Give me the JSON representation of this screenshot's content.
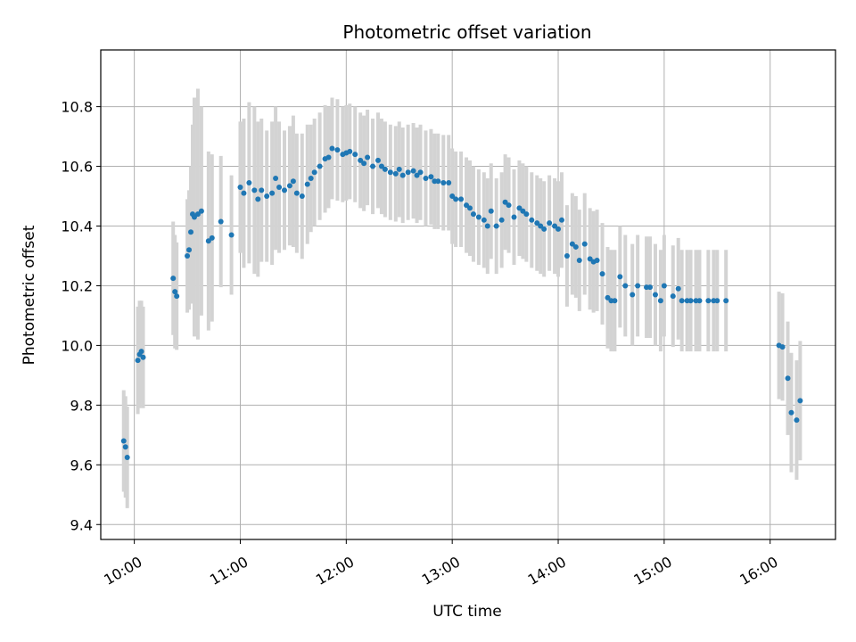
{
  "chart_data": {
    "type": "scatter",
    "title": "Photometric offset variation",
    "xlabel": "UTC time",
    "ylabel": "Photometric offset",
    "x_tick_labels": [
      "10:00",
      "11:00",
      "12:00",
      "13:00",
      "14:00",
      "15:00",
      "16:00"
    ],
    "y_tick_labels": [
      "9.4",
      "9.6",
      "9.8",
      "10.0",
      "10.2",
      "10.4",
      "10.6",
      "10.8"
    ],
    "x_ticks": [
      "10:00",
      "11:00",
      "12:00",
      "13:00",
      "14:00",
      "15:00",
      "16:00"
    ],
    "y_ticks": [
      9.4,
      9.6,
      9.8,
      10.0,
      10.2,
      10.4,
      10.6,
      10.8
    ],
    "xlim": [
      "09:41",
      "16:37"
    ],
    "ylim": [
      9.35,
      10.99
    ],
    "grid": true,
    "colors": {
      "points": "#1f77b4",
      "errorbars": "#d3d3d3",
      "grid": "#b0b0b0"
    },
    "series": [
      {
        "x": [
          "09:54",
          "09:55",
          "09:56",
          "10:02",
          "10:03",
          "10:04",
          "10:05",
          "10:22",
          "10:23",
          "10:24",
          "10:30",
          "10:31",
          "10:32",
          "10:33",
          "10:34",
          "10:36",
          "10:38",
          "10:42",
          "10:44",
          "10:49",
          "10:55",
          "11:00",
          "11:02",
          "11:05",
          "11:08",
          "11:10",
          "11:12",
          "11:15",
          "11:18",
          "11:20",
          "11:22",
          "11:25",
          "11:28",
          "11:30",
          "11:32",
          "11:35",
          "11:38",
          "11:40",
          "11:42",
          "11:45",
          "11:48",
          "11:50",
          "11:52",
          "11:55",
          "11:58",
          "12:00",
          "12:02",
          "12:05",
          "12:08",
          "12:10",
          "12:12",
          "12:15",
          "12:18",
          "12:20",
          "12:22",
          "12:25",
          "12:28",
          "12:30",
          "12:32",
          "12:35",
          "12:38",
          "12:40",
          "12:42",
          "12:45",
          "12:48",
          "12:50",
          "12:52",
          "12:55",
          "12:58",
          "13:00",
          "13:02",
          "13:05",
          "13:08",
          "13:10",
          "13:12",
          "13:15",
          "13:18",
          "13:20",
          "13:22",
          "13:25",
          "13:28",
          "13:30",
          "13:32",
          "13:35",
          "13:38",
          "13:40",
          "13:42",
          "13:45",
          "13:48",
          "13:50",
          "13:52",
          "13:55",
          "13:58",
          "14:00",
          "14:02",
          "14:05",
          "14:08",
          "14:10",
          "14:12",
          "14:15",
          "14:18",
          "14:20",
          "14:22",
          "14:25",
          "14:28",
          "14:30",
          "14:32",
          "14:35",
          "14:38",
          "14:42",
          "14:45",
          "14:50",
          "14:52",
          "14:55",
          "14:58",
          "15:00",
          "15:05",
          "15:08",
          "15:10",
          "15:13",
          "15:15",
          "15:18",
          "15:20",
          "15:25",
          "15:28",
          "15:30",
          "15:35",
          "16:05",
          "16:07",
          "16:10",
          "16:12",
          "16:15",
          "16:17"
        ],
        "y": [
          9.68,
          9.66,
          9.625,
          9.95,
          9.97,
          9.98,
          9.96,
          10.225,
          10.18,
          10.165,
          10.3,
          10.32,
          10.38,
          10.44,
          10.43,
          10.44,
          10.45,
          10.35,
          10.36,
          10.415,
          10.37,
          10.53,
          10.51,
          10.545,
          10.52,
          10.49,
          10.52,
          10.5,
          10.51,
          10.56,
          10.53,
          10.52,
          10.535,
          10.55,
          10.51,
          10.5,
          10.54,
          10.56,
          10.58,
          10.6,
          10.625,
          10.63,
          10.66,
          10.655,
          10.64,
          10.645,
          10.65,
          10.64,
          10.62,
          10.61,
          10.63,
          10.6,
          10.62,
          10.6,
          10.59,
          10.58,
          10.575,
          10.59,
          10.57,
          10.58,
          10.585,
          10.57,
          10.58,
          10.56,
          10.565,
          10.55,
          10.55,
          10.545,
          10.545,
          10.5,
          10.49,
          10.49,
          10.47,
          10.46,
          10.44,
          10.43,
          10.42,
          10.4,
          10.45,
          10.4,
          10.42,
          10.48,
          10.47,
          10.43,
          10.46,
          10.45,
          10.44,
          10.42,
          10.41,
          10.4,
          10.39,
          10.41,
          10.4,
          10.39,
          10.42,
          10.3,
          10.34,
          10.33,
          10.285,
          10.34,
          10.29,
          10.28,
          10.285,
          10.24,
          10.16,
          10.15,
          10.15,
          10.23,
          10.2,
          10.17,
          10.2,
          10.195,
          10.195,
          10.17,
          10.15,
          10.2,
          10.165,
          10.19,
          10.15,
          10.15,
          10.15,
          10.15,
          10.15,
          10.15,
          10.15,
          10.15,
          10.15,
          10.0,
          9.995,
          9.89,
          9.775,
          9.75,
          9.815
        ],
        "error": [
          0.17,
          0.17,
          0.17,
          0.18,
          0.18,
          0.17,
          0.17,
          0.19,
          0.19,
          0.18,
          0.19,
          0.2,
          0.22,
          0.3,
          0.4,
          0.42,
          0.35,
          0.3,
          0.28,
          0.22,
          0.2,
          0.22,
          0.25,
          0.27,
          0.28,
          0.26,
          0.24,
          0.22,
          0.24,
          0.24,
          0.22,
          0.2,
          0.2,
          0.22,
          0.2,
          0.21,
          0.2,
          0.18,
          0.18,
          0.18,
          0.18,
          0.17,
          0.17,
          0.17,
          0.16,
          0.16,
          0.16,
          0.16,
          0.16,
          0.16,
          0.16,
          0.16,
          0.16,
          0.16,
          0.16,
          0.16,
          0.16,
          0.16,
          0.16,
          0.16,
          0.16,
          0.16,
          0.16,
          0.16,
          0.16,
          0.16,
          0.16,
          0.16,
          0.16,
          0.16,
          0.16,
          0.16,
          0.16,
          0.16,
          0.16,
          0.16,
          0.16,
          0.16,
          0.16,
          0.16,
          0.16,
          0.16,
          0.16,
          0.16,
          0.16,
          0.16,
          0.16,
          0.16,
          0.16,
          0.16,
          0.16,
          0.16,
          0.16,
          0.16,
          0.16,
          0.17,
          0.17,
          0.17,
          0.17,
          0.17,
          0.17,
          0.17,
          0.17,
          0.17,
          0.17,
          0.17,
          0.17,
          0.17,
          0.17,
          0.17,
          0.17,
          0.17,
          0.17,
          0.17,
          0.17,
          0.17,
          0.17,
          0.17,
          0.17,
          0.17,
          0.17,
          0.17,
          0.17,
          0.17,
          0.17,
          0.17,
          0.17,
          0.18,
          0.18,
          0.19,
          0.2,
          0.2,
          0.2
        ]
      }
    ]
  }
}
